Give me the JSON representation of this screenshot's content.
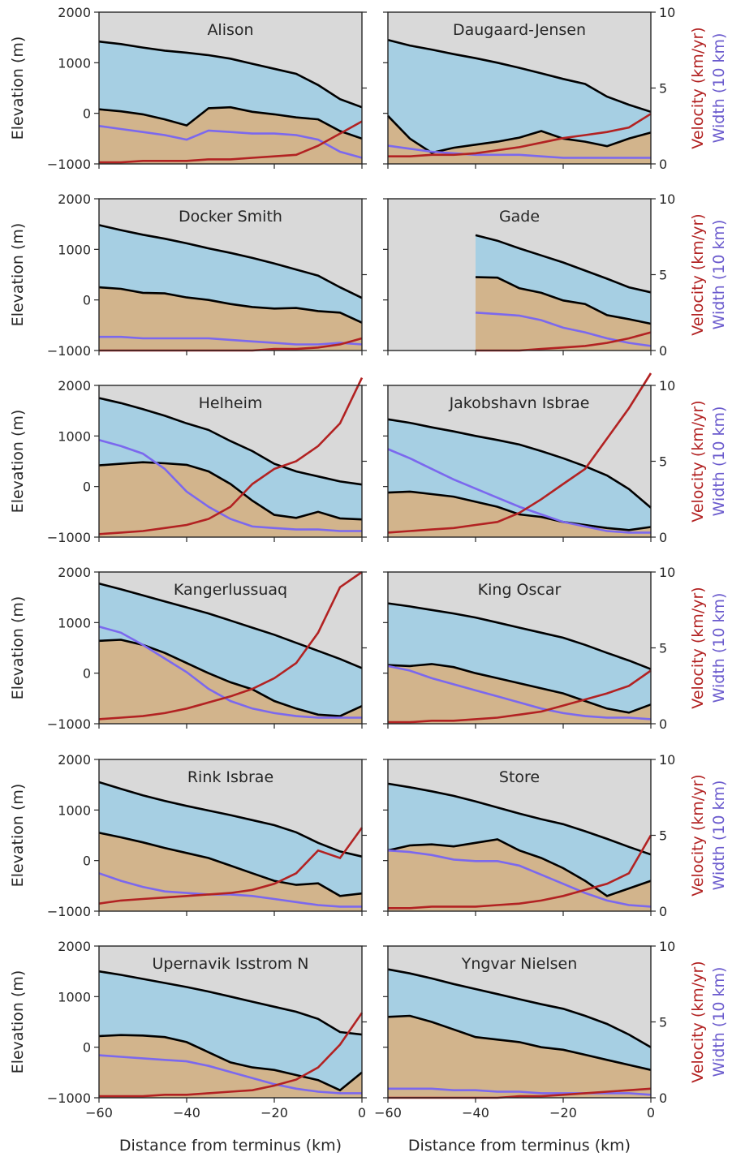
{
  "chart_data": {
    "type": "area",
    "shared": {
      "x_ticks": [
        -60,
        -40,
        -20,
        0
      ],
      "y_ticks": [
        -1000,
        0,
        1000,
        2000
      ],
      "y2_ticks": [
        0,
        5,
        10
      ],
      "xlim": [
        -60,
        0
      ],
      "ylim": [
        -1000,
        2000
      ],
      "y2lim": [
        0,
        10
      ],
      "xlabel": "Distance from terminus (km)",
      "ylabel": "Elevation (m)",
      "y2label_velocity": "Velocity (km/yr)",
      "y2label_width": "Width (10 km)",
      "colors": {
        "ice": "#a6cfe3",
        "bed": "#d2b48c",
        "background": "#d9d9d9",
        "surface_line": "#000000",
        "velocity": "#b22222",
        "width": "#7b68ee",
        "velocity_label": "#b22222",
        "width_label": "#6a5acd"
      }
    },
    "panels": [
      {
        "title": "Alison",
        "x": [
          -60,
          -55,
          -50,
          -45,
          -40,
          -35,
          -30,
          -25,
          -20,
          -15,
          -10,
          -5,
          0
        ],
        "surface": [
          1420,
          1370,
          1300,
          1240,
          1200,
          1150,
          1080,
          980,
          880,
          780,
          560,
          280,
          120
        ],
        "bed": [
          80,
          40,
          -20,
          -120,
          -240,
          100,
          120,
          30,
          -20,
          -80,
          -120,
          -350,
          -500
        ],
        "velocity": [
          0.1,
          0.1,
          0.2,
          0.2,
          0.2,
          0.3,
          0.3,
          0.4,
          0.5,
          0.6,
          1.2,
          2.0,
          2.8
        ],
        "width": [
          2.5,
          2.3,
          2.1,
          1.9,
          1.6,
          2.2,
          2.1,
          2.0,
          2.0,
          1.9,
          1.6,
          0.8,
          0.4
        ]
      },
      {
        "title": "Daugaard-Jensen",
        "x": [
          -60,
          -55,
          -50,
          -45,
          -40,
          -35,
          -30,
          -25,
          -20,
          -15,
          -10,
          -5,
          0
        ],
        "surface": [
          1450,
          1340,
          1260,
          1170,
          1090,
          1000,
          900,
          790,
          680,
          580,
          330,
          170,
          30
        ],
        "bed": [
          -50,
          -500,
          -780,
          -680,
          -620,
          -560,
          -480,
          -350,
          -500,
          -560,
          -650,
          -500,
          -380
        ],
        "velocity": [
          0.5,
          0.5,
          0.6,
          0.6,
          0.7,
          0.9,
          1.1,
          1.4,
          1.7,
          1.9,
          2.1,
          2.4,
          3.3
        ],
        "width": [
          1.2,
          1.0,
          0.8,
          0.7,
          0.6,
          0.6,
          0.6,
          0.5,
          0.4,
          0.4,
          0.4,
          0.4,
          0.4
        ]
      },
      {
        "title": "Docker Smith",
        "x": [
          -60,
          -55,
          -50,
          -45,
          -40,
          -35,
          -30,
          -25,
          -20,
          -15,
          -10,
          -5,
          0
        ],
        "surface": [
          1480,
          1380,
          1290,
          1210,
          1120,
          1020,
          930,
          830,
          720,
          600,
          480,
          250,
          40
        ],
        "bed": [
          250,
          220,
          140,
          130,
          50,
          0,
          -80,
          -140,
          -170,
          -160,
          -220,
          -250,
          -450
        ],
        "velocity": [
          0.0,
          0.0,
          0.0,
          0.0,
          0.0,
          0.0,
          0.0,
          0.0,
          0.1,
          0.1,
          0.2,
          0.4,
          0.8
        ],
        "width": [
          0.9,
          0.9,
          0.8,
          0.8,
          0.8,
          0.8,
          0.7,
          0.6,
          0.5,
          0.4,
          0.4,
          0.5,
          0.4
        ]
      },
      {
        "title": "Gade",
        "x": [
          -40,
          -35,
          -30,
          -25,
          -20,
          -15,
          -10,
          -5,
          0
        ],
        "surface": [
          1280,
          1170,
          1020,
          880,
          740,
          580,
          420,
          250,
          150
        ],
        "bed": [
          450,
          440,
          230,
          140,
          -10,
          -80,
          -300,
          -380,
          -470
        ],
        "velocity": [
          0.0,
          0.0,
          0.0,
          0.1,
          0.2,
          0.3,
          0.5,
          0.8,
          1.2
        ],
        "width": [
          2.5,
          2.4,
          2.3,
          2.0,
          1.5,
          1.2,
          0.8,
          0.5,
          0.3
        ]
      },
      {
        "title": "Helheim",
        "x": [
          -60,
          -55,
          -50,
          -45,
          -40,
          -35,
          -30,
          -25,
          -20,
          -15,
          -10,
          -5,
          0
        ],
        "surface": [
          1750,
          1650,
          1530,
          1400,
          1250,
          1120,
          900,
          700,
          450,
          300,
          200,
          100,
          40
        ],
        "bed": [
          420,
          450,
          480,
          460,
          430,
          300,
          50,
          -280,
          -560,
          -620,
          -500,
          -630,
          -650
        ],
        "velocity": [
          0.2,
          0.3,
          0.4,
          0.6,
          0.8,
          1.2,
          2.0,
          3.5,
          4.5,
          5.0,
          6.0,
          7.5,
          10.5
        ],
        "width": [
          6.4,
          6.0,
          5.5,
          4.5,
          3.0,
          2.0,
          1.2,
          0.7,
          0.6,
          0.5,
          0.5,
          0.4,
          0.4
        ]
      },
      {
        "title": "Jakobshavn Isbrae",
        "x": [
          -60,
          -55,
          -50,
          -45,
          -40,
          -35,
          -30,
          -25,
          -20,
          -15,
          -10,
          -5,
          0
        ],
        "surface": [
          1330,
          1260,
          1170,
          1090,
          1000,
          920,
          830,
          700,
          560,
          400,
          220,
          -50,
          -420
        ],
        "bed": [
          -120,
          -100,
          -150,
          -200,
          -300,
          -400,
          -550,
          -600,
          -700,
          -760,
          -820,
          -860,
          -800
        ],
        "velocity": [
          0.3,
          0.4,
          0.5,
          0.6,
          0.8,
          1.0,
          1.6,
          2.5,
          3.5,
          4.5,
          6.5,
          8.5,
          10.8
        ],
        "width": [
          5.8,
          5.2,
          4.5,
          3.8,
          3.2,
          2.6,
          2.0,
          1.5,
          1.0,
          0.7,
          0.4,
          0.3,
          0.3
        ]
      },
      {
        "title": "Kangerlussuaq",
        "x": [
          -60,
          -55,
          -50,
          -45,
          -40,
          -35,
          -30,
          -25,
          -20,
          -15,
          -10,
          -5,
          0
        ],
        "surface": [
          1770,
          1660,
          1540,
          1420,
          1300,
          1180,
          1040,
          900,
          760,
          600,
          440,
          280,
          100
        ],
        "bed": [
          640,
          660,
          560,
          400,
          200,
          0,
          -180,
          -320,
          -550,
          -700,
          -820,
          -850,
          -650
        ],
        "velocity": [
          0.3,
          0.4,
          0.5,
          0.7,
          1.0,
          1.4,
          1.8,
          2.3,
          3.0,
          4.0,
          6.0,
          9.0,
          10.0
        ],
        "width": [
          6.4,
          6.0,
          5.2,
          4.3,
          3.4,
          2.3,
          1.5,
          1.0,
          0.7,
          0.5,
          0.4,
          0.4,
          0.4
        ]
      },
      {
        "title": "King Oscar",
        "x": [
          -60,
          -55,
          -50,
          -45,
          -40,
          -35,
          -30,
          -25,
          -20,
          -15,
          -10,
          -5,
          0
        ],
        "surface": [
          1380,
          1320,
          1250,
          1180,
          1100,
          1000,
          900,
          800,
          700,
          560,
          400,
          250,
          80
        ],
        "bed": [
          160,
          140,
          180,
          120,
          0,
          -100,
          -200,
          -300,
          -400,
          -550,
          -700,
          -780,
          -620
        ],
        "velocity": [
          0.1,
          0.1,
          0.2,
          0.2,
          0.3,
          0.4,
          0.6,
          0.8,
          1.2,
          1.6,
          2.0,
          2.5,
          3.5
        ],
        "width": [
          3.8,
          3.5,
          3.0,
          2.6,
          2.2,
          1.8,
          1.4,
          1.0,
          0.7,
          0.5,
          0.4,
          0.4,
          0.3
        ]
      },
      {
        "title": "Rink Isbrae",
        "x": [
          -60,
          -55,
          -50,
          -45,
          -40,
          -35,
          -30,
          -25,
          -20,
          -15,
          -10,
          -5,
          0
        ],
        "surface": [
          1550,
          1420,
          1290,
          1180,
          1080,
          990,
          900,
          800,
          700,
          560,
          350,
          180,
          80
        ],
        "bed": [
          550,
          460,
          360,
          250,
          150,
          50,
          -100,
          -250,
          -400,
          -480,
          -450,
          -700,
          -650
        ],
        "velocity": [
          0.5,
          0.7,
          0.8,
          0.9,
          1.0,
          1.1,
          1.2,
          1.4,
          1.8,
          2.5,
          4.0,
          3.5,
          5.5
        ],
        "width": [
          2.5,
          2.0,
          1.6,
          1.3,
          1.2,
          1.1,
          1.1,
          1.0,
          0.8,
          0.6,
          0.4,
          0.3,
          0.3
        ]
      },
      {
        "title": "Store",
        "x": [
          -60,
          -55,
          -50,
          -45,
          -40,
          -35,
          -30,
          -25,
          -20,
          -15,
          -10,
          -5,
          0
        ],
        "surface": [
          1520,
          1450,
          1370,
          1280,
          1170,
          1050,
          930,
          820,
          720,
          580,
          430,
          270,
          120
        ],
        "bed": [
          200,
          300,
          320,
          280,
          350,
          420,
          200,
          50,
          -150,
          -400,
          -700,
          -550,
          -400
        ],
        "velocity": [
          0.2,
          0.2,
          0.3,
          0.3,
          0.3,
          0.4,
          0.5,
          0.7,
          1.0,
          1.4,
          1.8,
          2.5,
          5.0
        ],
        "width": [
          4.0,
          3.9,
          3.7,
          3.4,
          3.3,
          3.3,
          3.0,
          2.4,
          1.8,
          1.2,
          0.7,
          0.4,
          0.3
        ]
      },
      {
        "title": "Upernavik Isstrom N",
        "x": [
          -60,
          -55,
          -50,
          -45,
          -40,
          -35,
          -30,
          -25,
          -20,
          -15,
          -10,
          -5,
          0
        ],
        "surface": [
          1500,
          1430,
          1350,
          1270,
          1190,
          1100,
          1000,
          900,
          800,
          700,
          560,
          300,
          250
        ],
        "bed": [
          220,
          240,
          230,
          200,
          100,
          -100,
          -300,
          -400,
          -450,
          -550,
          -650,
          -850,
          -500
        ],
        "velocity": [
          0.1,
          0.1,
          0.1,
          0.2,
          0.2,
          0.3,
          0.4,
          0.5,
          0.8,
          1.2,
          2.0,
          3.5,
          5.6
        ],
        "width": [
          2.8,
          2.7,
          2.6,
          2.5,
          2.4,
          2.1,
          1.7,
          1.3,
          0.9,
          0.6,
          0.4,
          0.3,
          0.3
        ]
      },
      {
        "title": "Yngvar Nielsen",
        "x": [
          -60,
          -55,
          -50,
          -45,
          -40,
          -35,
          -30,
          -25,
          -20,
          -15,
          -10,
          -5,
          0
        ],
        "surface": [
          1540,
          1460,
          1360,
          1250,
          1150,
          1050,
          950,
          850,
          760,
          620,
          460,
          250,
          0
        ],
        "bed": [
          600,
          620,
          500,
          350,
          200,
          150,
          100,
          0,
          -50,
          -150,
          -250,
          -350,
          -450
        ],
        "velocity": [
          0.0,
          0.0,
          0.0,
          0.0,
          0.0,
          0.0,
          0.1,
          0.1,
          0.2,
          0.3,
          0.4,
          0.5,
          0.6
        ],
        "width": [
          0.6,
          0.6,
          0.6,
          0.5,
          0.5,
          0.4,
          0.4,
          0.3,
          0.3,
          0.3,
          0.3,
          0.3,
          0.2
        ]
      }
    ]
  }
}
